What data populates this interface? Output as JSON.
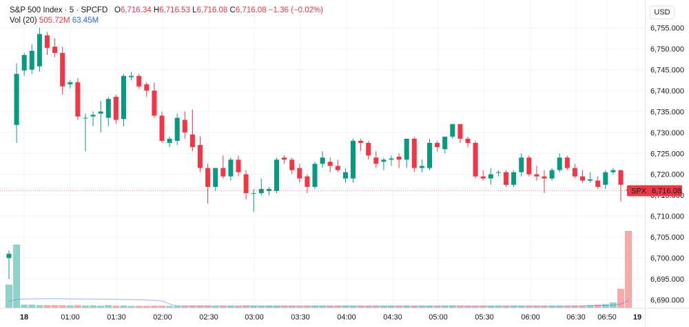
{
  "legend": {
    "symbol": "S&P 500 Index · 5 · SPCFD",
    "o_label": "O",
    "o_value": "6,716.34",
    "h_label": "H",
    "h_value": "6,716.53",
    "l_label": "L",
    "l_value": "6,716.08",
    "c_label": "C",
    "c_value": "6,716.08",
    "change": "−1.36 (−0.02%)",
    "vol_label": "Vol (20)",
    "vol_value": "505.72M",
    "vol_ma_value": "63.45M"
  },
  "currency_button": "USD",
  "price_tag": {
    "ticker": "SPX",
    "price": "6,716.08"
  },
  "colors": {
    "up": "#089981",
    "down": "#f23645",
    "up_vol": "#8fd3c8",
    "down_vol": "#f7a9a7",
    "vol_ma": "#2962ff",
    "grid": "#f0f3fa"
  },
  "chart_data": {
    "type": "candlestick",
    "interval": "5",
    "y_ticks": [
      6690,
      6695,
      6700,
      6705,
      6710,
      6715,
      6720,
      6725,
      6730,
      6735,
      6740,
      6745,
      6750,
      6755
    ],
    "ylim": [
      6687.5,
      6758
    ],
    "x_ticks": [
      "18",
      "01:00",
      "01:30",
      "02:00",
      "02:30",
      "03:00",
      "03:30",
      "04:00",
      "04:30",
      "05:00",
      "05:30",
      "06:00",
      "06:30",
      "06:50",
      "19"
    ],
    "last_price": 6716.08,
    "candles": [
      {
        "o": 6700.0,
        "h": 6701.8,
        "l": 6695.0,
        "c": 6701.0
      },
      {
        "o": 6731.8,
        "h": 6746.5,
        "l": 6727.5,
        "c": 6744.0
      },
      {
        "o": 6744.8,
        "h": 6749.0,
        "l": 6743.5,
        "c": 6748.5
      },
      {
        "o": 6745.0,
        "h": 6751.0,
        "l": 6744.0,
        "c": 6749.5
      },
      {
        "o": 6745.8,
        "h": 6755.0,
        "l": 6744.5,
        "c": 6753.5
      },
      {
        "o": 6753.2,
        "h": 6754.0,
        "l": 6748.5,
        "c": 6750.2
      },
      {
        "o": 6750.5,
        "h": 6752.5,
        "l": 6748.0,
        "c": 6749.0
      },
      {
        "o": 6749.0,
        "h": 6750.5,
        "l": 6739.0,
        "c": 6741.0
      },
      {
        "o": 6741.5,
        "h": 6742.5,
        "l": 6740.5,
        "c": 6742.0
      },
      {
        "o": 6742.0,
        "h": 6743.0,
        "l": 6733.0,
        "c": 6733.8
      },
      {
        "o": 6733.5,
        "h": 6734.5,
        "l": 6725.5,
        "c": 6733.5
      },
      {
        "o": 6733.8,
        "h": 6735.0,
        "l": 6731.5,
        "c": 6734.2
      },
      {
        "o": 6734.5,
        "h": 6737.5,
        "l": 6730.0,
        "c": 6735.0
      },
      {
        "o": 6733.5,
        "h": 6738.5,
        "l": 6731.5,
        "c": 6738.0
      },
      {
        "o": 6738.5,
        "h": 6739.0,
        "l": 6732.0,
        "c": 6733.0
      },
      {
        "o": 6733.2,
        "h": 6744.0,
        "l": 6731.5,
        "c": 6743.5
      },
      {
        "o": 6743.2,
        "h": 6744.5,
        "l": 6742.5,
        "c": 6743.5
      },
      {
        "o": 6743.5,
        "h": 6744.0,
        "l": 6740.5,
        "c": 6741.0
      },
      {
        "o": 6741.5,
        "h": 6742.0,
        "l": 6738.5,
        "c": 6740.0
      },
      {
        "o": 6740.0,
        "h": 6742.0,
        "l": 6733.5,
        "c": 6734.0
      },
      {
        "o": 6734.0,
        "h": 6735.0,
        "l": 6727.5,
        "c": 6728.0
      },
      {
        "o": 6727.5,
        "h": 6729.0,
        "l": 6726.5,
        "c": 6728.5
      },
      {
        "o": 6728.0,
        "h": 6734.5,
        "l": 6727.0,
        "c": 6733.5
      },
      {
        "o": 6733.0,
        "h": 6735.0,
        "l": 6728.5,
        "c": 6730.0
      },
      {
        "o": 6729.5,
        "h": 6735.5,
        "l": 6725.5,
        "c": 6726.5
      },
      {
        "o": 6727.0,
        "h": 6729.0,
        "l": 6720.5,
        "c": 6721.5
      },
      {
        "o": 6721.5,
        "h": 6722.5,
        "l": 6713.0,
        "c": 6717.0
      },
      {
        "o": 6717.0,
        "h": 6721.5,
        "l": 6716.0,
        "c": 6721.5
      },
      {
        "o": 6721.5,
        "h": 6724.5,
        "l": 6719.0,
        "c": 6719.5
      },
      {
        "o": 6719.5,
        "h": 6724.0,
        "l": 6718.5,
        "c": 6723.5
      },
      {
        "o": 6723.5,
        "h": 6724.5,
        "l": 6719.5,
        "c": 6720.5
      },
      {
        "o": 6720.0,
        "h": 6721.0,
        "l": 6714.0,
        "c": 6715.5
      },
      {
        "o": 6715.5,
        "h": 6716.5,
        "l": 6711.0,
        "c": 6715.5
      },
      {
        "o": 6715.5,
        "h": 6719.0,
        "l": 6715.0,
        "c": 6716.5
      },
      {
        "o": 6716.0,
        "h": 6717.0,
        "l": 6715.0,
        "c": 6716.5
      },
      {
        "o": 6716.0,
        "h": 6724.0,
        "l": 6715.5,
        "c": 6723.5
      },
      {
        "o": 6724.0,
        "h": 6724.5,
        "l": 6722.5,
        "c": 6723.5
      },
      {
        "o": 6723.5,
        "h": 6724.0,
        "l": 6720.0,
        "c": 6721.0
      },
      {
        "o": 6721.5,
        "h": 6722.5,
        "l": 6718.0,
        "c": 6719.0
      },
      {
        "o": 6719.5,
        "h": 6720.0,
        "l": 6715.5,
        "c": 6717.0
      },
      {
        "o": 6717.0,
        "h": 6723.0,
        "l": 6716.5,
        "c": 6722.5
      },
      {
        "o": 6722.5,
        "h": 6725.5,
        "l": 6721.5,
        "c": 6724.0
      },
      {
        "o": 6723.0,
        "h": 6724.0,
        "l": 6720.5,
        "c": 6722.0
      },
      {
        "o": 6722.0,
        "h": 6723.5,
        "l": 6720.5,
        "c": 6721.0
      },
      {
        "o": 6719.0,
        "h": 6721.5,
        "l": 6718.0,
        "c": 6720.5
      },
      {
        "o": 6719.0,
        "h": 6728.5,
        "l": 6718.0,
        "c": 6728.0
      },
      {
        "o": 6728.0,
        "h": 6728.5,
        "l": 6725.5,
        "c": 6727.5
      },
      {
        "o": 6727.5,
        "h": 6728.0,
        "l": 6723.5,
        "c": 6724.5
      },
      {
        "o": 6724.0,
        "h": 6725.5,
        "l": 6721.5,
        "c": 6722.5
      },
      {
        "o": 6723.0,
        "h": 6724.0,
        "l": 6721.0,
        "c": 6723.5
      },
      {
        "o": 6723.5,
        "h": 6724.5,
        "l": 6722.0,
        "c": 6723.8
      },
      {
        "o": 6724.2,
        "h": 6725.0,
        "l": 6721.5,
        "c": 6723.5
      },
      {
        "o": 6723.5,
        "h": 6728.5,
        "l": 6721.5,
        "c": 6728.5
      },
      {
        "o": 6728.5,
        "h": 6729.0,
        "l": 6720.5,
        "c": 6721.5
      },
      {
        "o": 6721.5,
        "h": 6723.5,
        "l": 6720.5,
        "c": 6722.0
      },
      {
        "o": 6721.5,
        "h": 6728.5,
        "l": 6721.0,
        "c": 6727.5
      },
      {
        "o": 6727.5,
        "h": 6728.0,
        "l": 6725.5,
        "c": 6726.5
      },
      {
        "o": 6726.0,
        "h": 6729.0,
        "l": 6725.0,
        "c": 6729.0
      },
      {
        "o": 6729.0,
        "h": 6732.0,
        "l": 6728.5,
        "c": 6732.0
      },
      {
        "o": 6732.0,
        "h": 6732.0,
        "l": 6727.5,
        "c": 6728.5
      },
      {
        "o": 6728.5,
        "h": 6729.0,
        "l": 6726.5,
        "c": 6727.5
      },
      {
        "o": 6727.5,
        "h": 6728.0,
        "l": 6719.0,
        "c": 6719.5
      },
      {
        "o": 6719.5,
        "h": 6721.0,
        "l": 6718.5,
        "c": 6719.0
      },
      {
        "o": 6719.0,
        "h": 6721.5,
        "l": 6717.5,
        "c": 6720.0
      },
      {
        "o": 6720.5,
        "h": 6721.0,
        "l": 6719.5,
        "c": 6720.5
      },
      {
        "o": 6720.5,
        "h": 6721.0,
        "l": 6717.0,
        "c": 6717.5
      },
      {
        "o": 6717.5,
        "h": 6721.0,
        "l": 6717.0,
        "c": 6720.5
      },
      {
        "o": 6720.5,
        "h": 6725.0,
        "l": 6719.5,
        "c": 6724.0
      },
      {
        "o": 6724.0,
        "h": 6724.5,
        "l": 6719.5,
        "c": 6720.0
      },
      {
        "o": 6720.0,
        "h": 6722.0,
        "l": 6718.5,
        "c": 6719.5
      },
      {
        "o": 6719.5,
        "h": 6721.0,
        "l": 6715.5,
        "c": 6719.0
      },
      {
        "o": 6719.0,
        "h": 6721.5,
        "l": 6718.5,
        "c": 6721.0
      },
      {
        "o": 6721.0,
        "h": 6725.0,
        "l": 6720.5,
        "c": 6724.0
      },
      {
        "o": 6724.0,
        "h": 6724.5,
        "l": 6721.0,
        "c": 6721.5
      },
      {
        "o": 6721.5,
        "h": 6722.5,
        "l": 6719.0,
        "c": 6719.5
      },
      {
        "o": 6719.5,
        "h": 6721.0,
        "l": 6718.0,
        "c": 6718.5
      },
      {
        "o": 6718.5,
        "h": 6720.5,
        "l": 6718.0,
        "c": 6718.8
      },
      {
        "o": 6718.5,
        "h": 6719.5,
        "l": 6716.5,
        "c": 6717.0
      },
      {
        "o": 6717.5,
        "h": 6721.0,
        "l": 6716.5,
        "c": 6720.5
      },
      {
        "o": 6720.5,
        "h": 6721.5,
        "l": 6720.0,
        "c": 6721.0
      },
      {
        "o": 6721.0,
        "h": 6721.0,
        "l": 6713.5,
        "c": 6717.5
      },
      {
        "o": 6716.34,
        "h": 6716.53,
        "l": 6716.08,
        "c": 6716.08
      }
    ],
    "volume": [
      22,
      60,
      3,
      3,
      2.5,
      2.5,
      2.5,
      2.5,
      2.3,
      2.5,
      2.2,
      2.3,
      2,
      2.5,
      2,
      2.2,
      1.8,
      1.8,
      1.8,
      2,
      2,
      1.8,
      1.6,
      1.8,
      2,
      2,
      2,
      1.6,
      1.8,
      1.6,
      1.6,
      2,
      1.8,
      1.8,
      1.8,
      1.8,
      1.8,
      1.8,
      1.6,
      1.8,
      1.8,
      1.8,
      1.8,
      1.8,
      1.8,
      1.8,
      1.8,
      1.8,
      1.8,
      1.8,
      1.8,
      1.8,
      1.8,
      1.8,
      1.8,
      1.8,
      1.8,
      1.8,
      2,
      1.8,
      1.8,
      1.8,
      1.8,
      1.8,
      1.8,
      1.8,
      1.8,
      1.8,
      1.8,
      1.8,
      1.8,
      1.8,
      1.8,
      1.8,
      2,
      2,
      2.5,
      3,
      3.5,
      5,
      18,
      73
    ],
    "volume_ma": [
      6,
      8,
      8.4,
      8.5,
      8.6,
      8.7,
      8.7,
      8.6,
      8.4,
      8.4,
      8.3,
      8.3,
      8.2,
      8.1,
      8.0,
      7.9,
      7.8,
      7.6,
      7.3,
      7.0,
      6.5,
      3.5,
      1.8,
      1.8,
      1.8,
      1.8,
      1.8,
      1.8,
      1.8,
      1.8,
      1.8,
      1.8,
      1.8,
      1.8,
      1.8,
      1.8,
      1.8,
      1.8,
      1.8,
      1.8,
      1.8,
      1.8,
      1.8,
      1.8,
      1.8,
      1.8,
      1.8,
      1.8,
      1.8,
      1.8,
      1.8,
      1.8,
      1.8,
      1.8,
      1.8,
      1.8,
      1.8,
      1.8,
      1.8,
      1.8,
      1.8,
      1.8,
      1.8,
      1.8,
      1.8,
      1.8,
      1.8,
      1.8,
      1.8,
      1.8,
      1.8,
      1.8,
      1.8,
      1.8,
      1.8,
      1.9,
      2.0,
      2.1,
      2.3,
      2.6,
      3.4,
      7
    ]
  }
}
